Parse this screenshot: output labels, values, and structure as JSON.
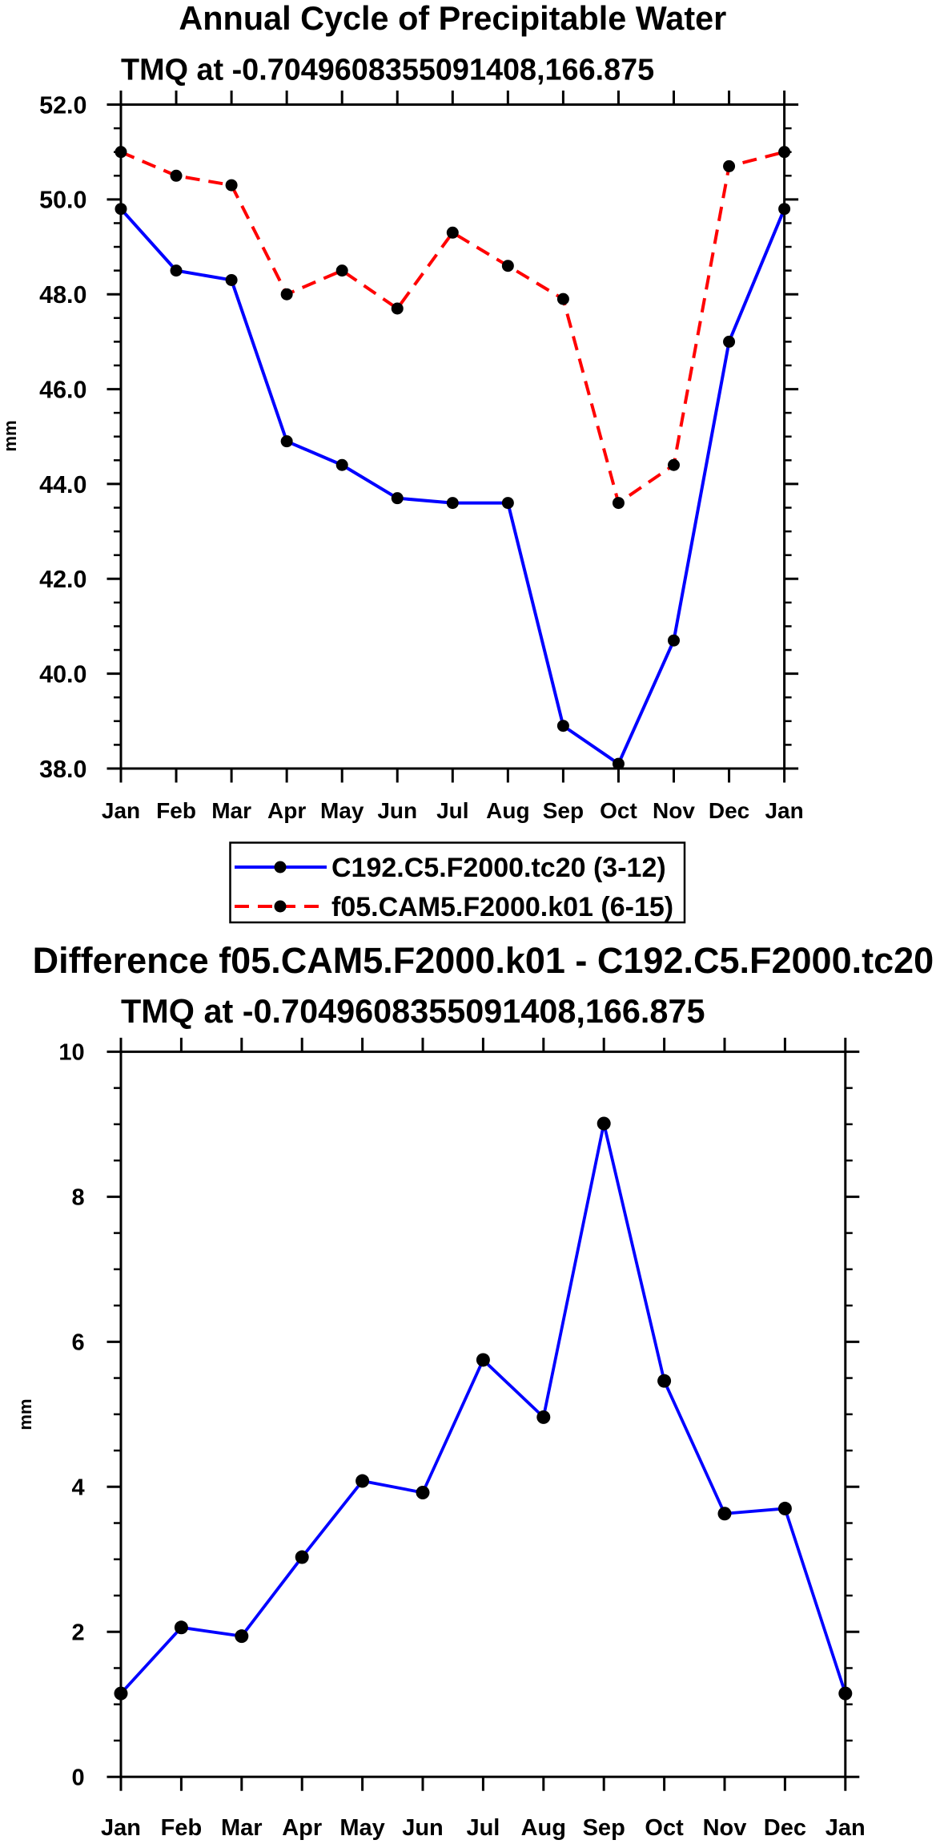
{
  "chart_data": [
    {
      "type": "line",
      "title": "Annual Cycle of Precipitable Water",
      "subtitle": "TMQ at -0.7049608355091408,166.875",
      "ylabel": "mm",
      "categories": [
        "Jan",
        "Feb",
        "Mar",
        "Apr",
        "May",
        "Jun",
        "Jul",
        "Aug",
        "Sep",
        "Oct",
        "Nov",
        "Dec",
        "Jan"
      ],
      "ylim": [
        38.0,
        52.0
      ],
      "yticks": [
        "38.0",
        "40.0",
        "42.0",
        "44.0",
        "46.0",
        "48.0",
        "50.0",
        "52.0"
      ],
      "yminor_step": 0.5,
      "grid": false,
      "series": [
        {
          "name": "C192.C5.F2000.tc20 (3-12)",
          "color": "#0000FF",
          "values": [
            49.8,
            48.5,
            48.3,
            44.9,
            44.4,
            43.7,
            43.6,
            43.6,
            38.9,
            38.1,
            40.7,
            47.0,
            49.8
          ]
        },
        {
          "name": "f05.CAM5.F2000.k01 (6-15)",
          "color": "#FF0000",
          "values": [
            51.0,
            50.5,
            50.3,
            48.0,
            48.5,
            47.7,
            49.3,
            48.6,
            47.9,
            43.6,
            44.4,
            50.7,
            51.0
          ]
        }
      ]
    },
    {
      "type": "line",
      "title": "Difference f05.CAM5.F2000.k01 - C192.C5.F2000.tc20",
      "subtitle": "TMQ at -0.7049608355091408,166.875",
      "ylabel": "mm",
      "categories": [
        "Jan",
        "Feb",
        "Mar",
        "Apr",
        "May",
        "Jun",
        "Jul",
        "Aug",
        "Sep",
        "Oct",
        "Nov",
        "Dec",
        "Jan"
      ],
      "ylim": [
        0,
        10
      ],
      "yticks": [
        "0",
        "2",
        "4",
        "6",
        "8",
        "10"
      ],
      "yminor_step": 0.5,
      "grid": false,
      "series": [
        {
          "color": "#0000FF",
          "values": [
            1.15,
            2.06,
            1.94,
            3.03,
            4.08,
            3.92,
            5.75,
            4.96,
            9.01,
            5.46,
            3.63,
            3.7,
            1.15
          ]
        }
      ]
    }
  ]
}
